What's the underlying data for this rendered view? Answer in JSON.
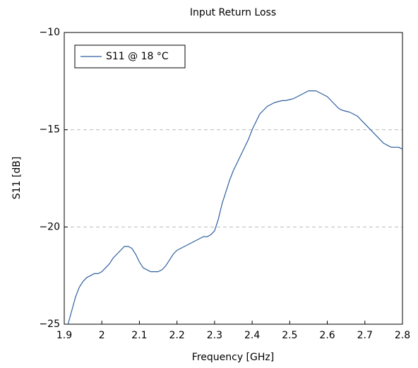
{
  "chart_data": {
    "type": "line",
    "title": "Input Return Loss",
    "xlabel": "Frequency [GHz]",
    "ylabel": "S11 [dB]",
    "x": [
      1.91,
      1.92,
      1.93,
      1.94,
      1.95,
      1.96,
      1.97,
      1.98,
      1.99,
      2.0,
      2.01,
      2.02,
      2.03,
      2.04,
      2.05,
      2.06,
      2.07,
      2.08,
      2.09,
      2.1,
      2.11,
      2.12,
      2.13,
      2.14,
      2.15,
      2.16,
      2.17,
      2.18,
      2.19,
      2.2,
      2.21,
      2.22,
      2.23,
      2.24,
      2.25,
      2.26,
      2.27,
      2.28,
      2.29,
      2.3,
      2.31,
      2.32,
      2.33,
      2.34,
      2.35,
      2.36,
      2.37,
      2.38,
      2.39,
      2.4,
      2.41,
      2.42,
      2.43,
      2.44,
      2.45,
      2.46,
      2.47,
      2.48,
      2.49,
      2.5,
      2.51,
      2.52,
      2.53,
      2.54,
      2.55,
      2.56,
      2.57,
      2.58,
      2.59,
      2.6,
      2.61,
      2.62,
      2.63,
      2.64,
      2.65,
      2.66,
      2.67,
      2.68,
      2.69,
      2.7,
      2.71,
      2.72,
      2.73,
      2.74,
      2.75,
      2.76,
      2.77,
      2.78,
      2.79,
      2.8
    ],
    "series": [
      {
        "name": "S11 @ 18 °C",
        "color": "#2f5f9e",
        "values": [
          -25,
          -24.3,
          -23.6,
          -23.1,
          -22.8,
          -22.6,
          -22.5,
          -22.4,
          -22.4,
          -22.3,
          -22.1,
          -21.9,
          -21.6,
          -21.4,
          -21.2,
          -21.0,
          -21.0,
          -21.1,
          -21.4,
          -21.8,
          -22.1,
          -22.2,
          -22.3,
          -22.3,
          -22.3,
          -22.2,
          -22.0,
          -21.7,
          -21.4,
          -21.2,
          -21.1,
          -21.0,
          -20.9,
          -20.8,
          -20.7,
          -20.6,
          -20.5,
          -20.5,
          -20.4,
          -20.2,
          -19.6,
          -18.8,
          -18.2,
          -17.6,
          -17.1,
          -16.7,
          -16.3,
          -15.9,
          -15.5,
          -15.0,
          -14.6,
          -14.2,
          -14.0,
          -13.8,
          -13.7,
          -13.6,
          -13.55,
          -13.5,
          -13.5,
          -13.45,
          -13.4,
          -13.3,
          -13.2,
          -13.1,
          -13.0,
          -13.0,
          -13.0,
          -13.1,
          -13.2,
          -13.3,
          -13.5,
          -13.7,
          -13.9,
          -14.0,
          -14.05,
          -14.1,
          -14.2,
          -14.3,
          -14.5,
          -14.7,
          -14.9,
          -15.1,
          -15.3,
          -15.5,
          -15.7,
          -15.8,
          -15.9,
          -15.9,
          -15.9,
          -16.0
        ]
      }
    ],
    "xlim": [
      1.9,
      2.8
    ],
    "xticks": [
      1.9,
      2,
      2.1,
      2.2,
      2.3,
      2.4,
      2.5,
      2.6,
      2.7,
      2.8
    ],
    "ylim": [
      -25,
      -10
    ],
    "yticks": [
      {
        "value": -25,
        "label": "−25"
      },
      {
        "value": -20,
        "label": "−20"
      },
      {
        "value": -15,
        "label": "−15"
      },
      {
        "value": -10,
        "label": "−10"
      }
    ],
    "grid": true,
    "legend": "upper left"
  }
}
